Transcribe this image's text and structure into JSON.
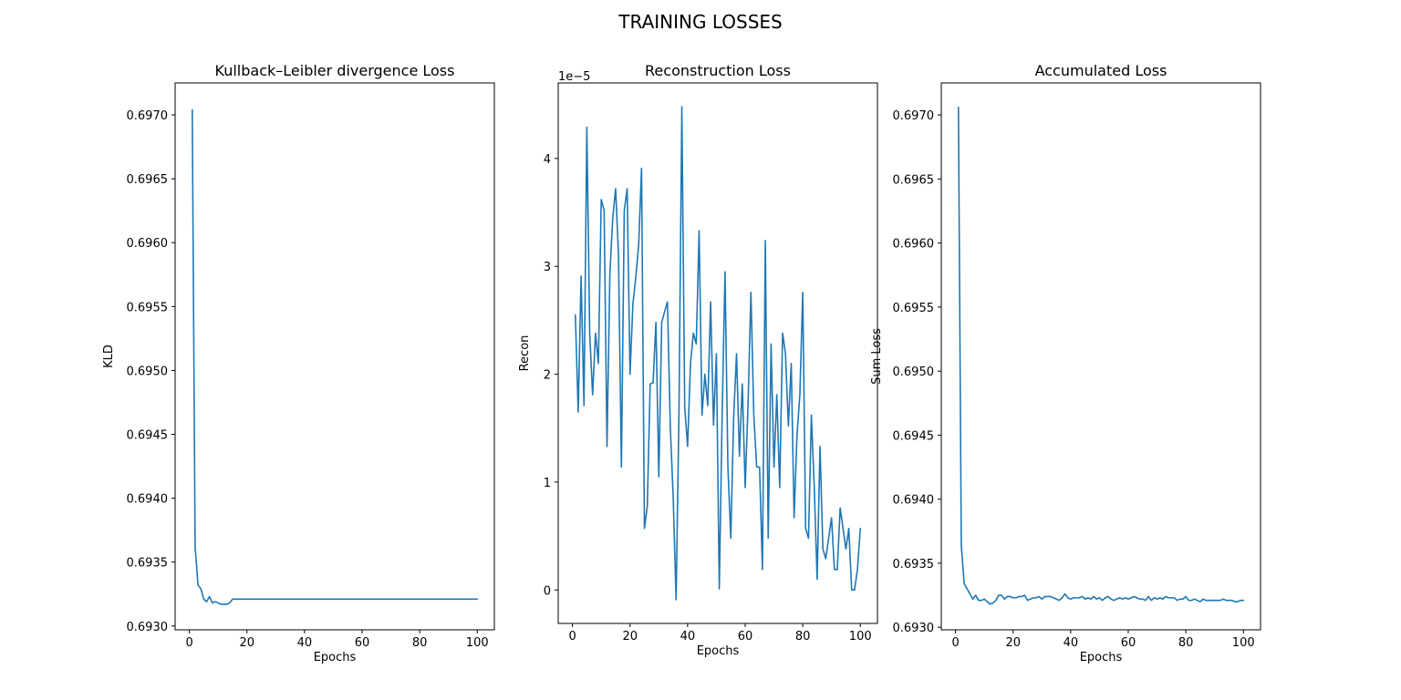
{
  "figure": {
    "suptitle": "TRAINING LOSSES"
  },
  "style": {
    "line_color": "#1f77b4",
    "axis_color": "#000000",
    "background": "#ffffff"
  },
  "chart_data": [
    {
      "type": "line",
      "title": "Kullback–Leibler divergence Loss",
      "xlabel": "Epochs",
      "ylabel": "KLD",
      "xlim": [
        -4.95,
        105.95
      ],
      "ylim": [
        0.69297,
        0.69725
      ],
      "xticks": [
        0,
        20,
        40,
        60,
        80,
        100
      ],
      "xtick_labels": [
        "0",
        "20",
        "40",
        "60",
        "80",
        "100"
      ],
      "yticks": [
        0.693,
        0.6935,
        0.694,
        0.6945,
        0.695,
        0.6955,
        0.696,
        0.6965,
        0.697
      ],
      "ytick_labels": [
        "0.6930",
        "0.6935",
        "0.6940",
        "0.6945",
        "0.6950",
        "0.6955",
        "0.6960",
        "0.6965",
        "0.6970"
      ],
      "offset_text": "",
      "grid": false,
      "series": [
        {
          "x": [
            1,
            2,
            3,
            4,
            5,
            6,
            7,
            8,
            9,
            10,
            11,
            12,
            13,
            14,
            15,
            16,
            17,
            18,
            19,
            20,
            21,
            22,
            23,
            24,
            25,
            26,
            27,
            28,
            29,
            30,
            31,
            32,
            33,
            34,
            35,
            36,
            37,
            38,
            39,
            40,
            41,
            42,
            43,
            44,
            45,
            46,
            47,
            48,
            49,
            50,
            51,
            52,
            53,
            54,
            55,
            56,
            57,
            58,
            59,
            60,
            61,
            62,
            63,
            64,
            65,
            66,
            67,
            68,
            69,
            70,
            71,
            72,
            73,
            74,
            75,
            76,
            77,
            78,
            79,
            80,
            81,
            82,
            83,
            84,
            85,
            86,
            87,
            88,
            89,
            90,
            91,
            92,
            93,
            94,
            95,
            96,
            97,
            98,
            99,
            100
          ],
          "values": [
            0.69704,
            0.69362,
            0.69332,
            0.69329,
            0.69321,
            0.69319,
            0.69323,
            0.69318,
            0.69319,
            0.69318,
            0.69317,
            0.69317,
            0.69317,
            0.69318,
            0.69321,
            0.69321,
            0.69321,
            0.69321,
            0.69321,
            0.69321,
            0.69321,
            0.69321,
            0.69321,
            0.69321,
            0.69321,
            0.69321,
            0.69321,
            0.69321,
            0.69321,
            0.69321,
            0.69321,
            0.69321,
            0.69321,
            0.69321,
            0.69321,
            0.69321,
            0.69321,
            0.69321,
            0.69321,
            0.69321,
            0.69321,
            0.69321,
            0.69321,
            0.69321,
            0.69321,
            0.69321,
            0.69321,
            0.69321,
            0.69321,
            0.69321,
            0.69321,
            0.69321,
            0.69321,
            0.69321,
            0.69321,
            0.69321,
            0.69321,
            0.69321,
            0.69321,
            0.69321,
            0.69321,
            0.69321,
            0.69321,
            0.69321,
            0.69321,
            0.69321,
            0.69321,
            0.69321,
            0.69321,
            0.69321,
            0.69321,
            0.69321,
            0.69321,
            0.69321,
            0.69321,
            0.69321,
            0.69321,
            0.69321,
            0.69321,
            0.69321,
            0.69321,
            0.69321,
            0.69321,
            0.69321,
            0.69321,
            0.69321,
            0.69321,
            0.69321,
            0.69321,
            0.69321,
            0.69321,
            0.69321,
            0.69321,
            0.69321,
            0.69321,
            0.69321,
            0.69321,
            0.69321,
            0.69321,
            0.69321
          ]
        }
      ]
    },
    {
      "type": "line",
      "title": "Reconstruction Loss",
      "xlabel": "Epochs",
      "ylabel": "Recon",
      "xlim": [
        -4.95,
        105.95
      ],
      "ylim": [
        -3.1e-06,
        4.7e-05
      ],
      "xticks": [
        0,
        20,
        40,
        60,
        80,
        100
      ],
      "xtick_labels": [
        "0",
        "20",
        "40",
        "60",
        "80",
        "100"
      ],
      "yticks": [
        0,
        1e-05,
        2e-05,
        3e-05,
        4e-05
      ],
      "ytick_labels": [
        "0",
        "1",
        "2",
        "3",
        "4"
      ],
      "offset_text": "1e−5",
      "grid": false,
      "series": [
        {
          "x": [
            1,
            2,
            3,
            4,
            5,
            6,
            7,
            8,
            9,
            10,
            11,
            12,
            13,
            14,
            15,
            16,
            17,
            18,
            19,
            20,
            21,
            22,
            23,
            24,
            25,
            26,
            27,
            28,
            29,
            30,
            31,
            32,
            33,
            34,
            35,
            36,
            37,
            38,
            39,
            40,
            41,
            42,
            43,
            44,
            45,
            46,
            47,
            48,
            49,
            50,
            51,
            52,
            53,
            54,
            55,
            56,
            57,
            58,
            59,
            60,
            61,
            62,
            63,
            64,
            65,
            66,
            67,
            68,
            69,
            70,
            71,
            72,
            73,
            74,
            75,
            76,
            77,
            78,
            79,
            80,
            81,
            82,
            83,
            84,
            85,
            86,
            87,
            88,
            89,
            90,
            91,
            92,
            93,
            94,
            95,
            96,
            97,
            98,
            99,
            100
          ],
          "values": [
            2.55e-05,
            1.65e-05,
            2.91e-05,
            1.71e-05,
            4.29e-05,
            2.37e-05,
            1.81e-05,
            2.38e-05,
            2.1e-05,
            3.62e-05,
            3.52e-05,
            1.33e-05,
            2.93e-05,
            3.45e-05,
            3.72e-05,
            3.1e-05,
            1.14e-05,
            3.52e-05,
            3.72e-05,
            2e-05,
            2.65e-05,
            2.9e-05,
            3.2e-05,
            3.91e-05,
            5.7e-06,
            7.8e-06,
            1.91e-05,
            1.92e-05,
            2.48e-05,
            1.05e-05,
            2.48e-05,
            2.58e-05,
            2.67e-05,
            1.5e-05,
            8.6e-06,
            -9e-07,
            1.64e-05,
            4.48e-05,
            1.7e-05,
            1.33e-05,
            2.1e-05,
            2.38e-05,
            2.28e-05,
            3.33e-05,
            1.62e-05,
            2e-05,
            1.71e-05,
            2.67e-05,
            1.53e-05,
            2.19e-05,
            1e-07,
            1.62e-05,
            2.95e-05,
            1.14e-05,
            4.8e-06,
            1.6e-05,
            2.19e-05,
            1.24e-05,
            1.91e-05,
            9.5e-06,
            1.72e-05,
            2.76e-05,
            1.62e-05,
            1.14e-05,
            1.14e-05,
            1.9e-06,
            3.24e-05,
            4.8e-06,
            2.28e-05,
            1.14e-05,
            1.81e-05,
            9.5e-06,
            2.38e-05,
            2.19e-05,
            1.52e-05,
            2.1e-05,
            6.7e-06,
            1.43e-05,
            1.81e-05,
            2.76e-05,
            5.7e-06,
            4.8e-06,
            1.62e-05,
            9.5e-06,
            1e-06,
            1.33e-05,
            3.8e-06,
            2.9e-06,
            4.8e-06,
            6.7e-06,
            1.9e-06,
            1.9e-06,
            7.6e-06,
            5.7e-06,
            3.8e-06,
            5.7e-06,
            0.0,
            0.0,
            1.9e-06,
            5.7e-06
          ]
        }
      ]
    },
    {
      "type": "line",
      "title": "Accumulated Loss",
      "xlabel": "Epochs",
      "ylabel": "Sum Loss",
      "xlim": [
        -4.95,
        105.95
      ],
      "ylim": [
        0.69298,
        0.69725
      ],
      "xticks": [
        0,
        20,
        40,
        60,
        80,
        100
      ],
      "xtick_labels": [
        "0",
        "20",
        "40",
        "60",
        "80",
        "100"
      ],
      "yticks": [
        0.693,
        0.6935,
        0.694,
        0.6945,
        0.695,
        0.6955,
        0.696,
        0.6965,
        0.697
      ],
      "ytick_labels": [
        "0.6930",
        "0.6935",
        "0.6940",
        "0.6945",
        "0.6950",
        "0.6955",
        "0.6960",
        "0.6965",
        "0.6970"
      ],
      "offset_text": "",
      "grid": false,
      "series": [
        {
          "x": [
            1,
            2,
            3,
            4,
            5,
            6,
            7,
            8,
            9,
            10,
            11,
            12,
            13,
            14,
            15,
            16,
            17,
            18,
            19,
            20,
            21,
            22,
            23,
            24,
            25,
            26,
            27,
            28,
            29,
            30,
            31,
            32,
            33,
            34,
            35,
            36,
            37,
            38,
            39,
            40,
            41,
            42,
            43,
            44,
            45,
            46,
            47,
            48,
            49,
            50,
            51,
            52,
            53,
            54,
            55,
            56,
            57,
            58,
            59,
            60,
            61,
            62,
            63,
            64,
            65,
            66,
            67,
            68,
            69,
            70,
            71,
            72,
            73,
            74,
            75,
            76,
            77,
            78,
            79,
            80,
            81,
            82,
            83,
            84,
            85,
            86,
            87,
            88,
            89,
            90,
            91,
            92,
            93,
            94,
            95,
            96,
            97,
            98,
            99,
            100
          ],
          "values": [
            0.69706,
            0.69364,
            0.69334,
            0.6933,
            0.69326,
            0.69322,
            0.69325,
            0.69321,
            0.69321,
            0.69322,
            0.6932,
            0.69318,
            0.69319,
            0.69321,
            0.69325,
            0.69325,
            0.69322,
            0.69324,
            0.69324,
            0.69323,
            0.69323,
            0.69324,
            0.69324,
            0.69325,
            0.69321,
            0.69322,
            0.69323,
            0.69323,
            0.69324,
            0.69322,
            0.69324,
            0.69324,
            0.69324,
            0.69323,
            0.69322,
            0.69321,
            0.69323,
            0.69326,
            0.69323,
            0.69322,
            0.69323,
            0.69323,
            0.69323,
            0.69324,
            0.69322,
            0.69323,
            0.69322,
            0.69324,
            0.69322,
            0.69323,
            0.69321,
            0.69323,
            0.69324,
            0.69322,
            0.69321,
            0.69322,
            0.69323,
            0.69322,
            0.69323,
            0.69322,
            0.69323,
            0.69324,
            0.69323,
            0.69322,
            0.69322,
            0.69321,
            0.69324,
            0.69321,
            0.69323,
            0.69322,
            0.69323,
            0.69322,
            0.69324,
            0.69323,
            0.69323,
            0.69323,
            0.69321,
            0.69322,
            0.69322,
            0.69324,
            0.69321,
            0.69321,
            0.69322,
            0.69321,
            0.6932,
            0.69322,
            0.69321,
            0.69321,
            0.69321,
            0.69321,
            0.69321,
            0.69321,
            0.69322,
            0.69321,
            0.69321,
            0.69321,
            0.6932,
            0.6932,
            0.69321,
            0.69321
          ]
        }
      ]
    }
  ]
}
